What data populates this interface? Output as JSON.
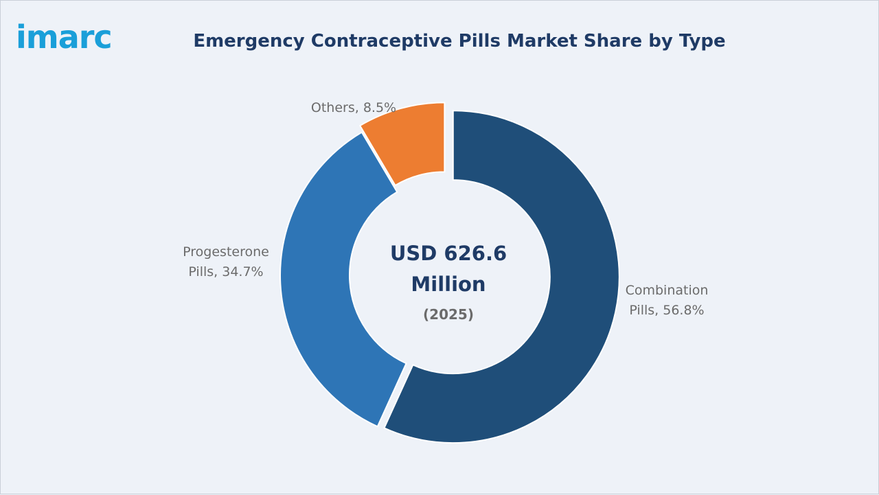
{
  "logo": {
    "text": "imarc"
  },
  "chart_data": {
    "type": "pie",
    "title": "Emergency Contraceptive Pills Market Share by Type",
    "center_value": [
      "USD 626.6",
      "Million"
    ],
    "center_note": "(2025)",
    "slices": [
      {
        "name": "Combination Pills",
        "label_lines": [
          "Combination",
          "Pills, 56.8%"
        ],
        "value": 56.8,
        "color": "#1f4e79"
      },
      {
        "name": "Progesterone Pills",
        "label_lines": [
          "Progesterone",
          "Pills, 34.7%"
        ],
        "value": 34.7,
        "color": "#2e75b6"
      },
      {
        "name": "Others",
        "label_lines": [
          "Others, 8.5%"
        ],
        "value": 8.5,
        "color": "#ed7d31"
      }
    ]
  }
}
